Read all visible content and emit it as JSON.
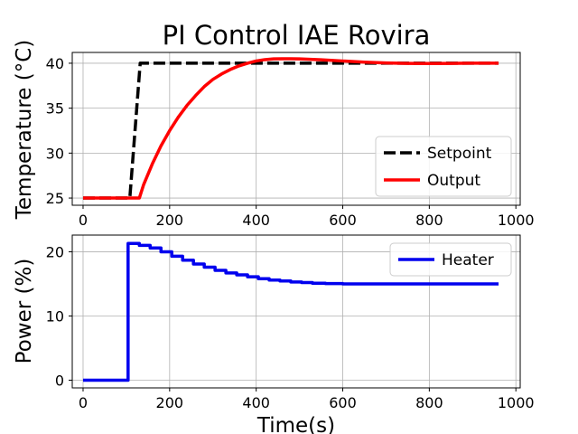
{
  "chart_data": [
    {
      "type": "line",
      "title": "PI Control IAE Rovira",
      "xlabel": "",
      "ylabel": "Temperature (°C)",
      "xlim": [
        -25,
        1010
      ],
      "ylim": [
        24.2,
        41.2
      ],
      "xticks": [
        0,
        200,
        400,
        600,
        800,
        1000
      ],
      "yticks": [
        25,
        30,
        35,
        40
      ],
      "grid": true,
      "legend_position": "lower-right",
      "series": [
        {
          "name": "Setpoint",
          "color": "#000000",
          "style": "dashed",
          "x": [
            0,
            108,
            132,
            960
          ],
          "y": [
            25,
            25,
            40,
            40
          ]
        },
        {
          "name": "Output",
          "color": "#ff0000",
          "style": "solid",
          "x": [
            0,
            130,
            140,
            160,
            180,
            200,
            220,
            240,
            260,
            280,
            300,
            320,
            340,
            360,
            380,
            400,
            420,
            440,
            460,
            480,
            500,
            550,
            600,
            650,
            700,
            750,
            800,
            850,
            900,
            960
          ],
          "y": [
            25,
            25,
            26.5,
            28.8,
            30.8,
            32.5,
            34.0,
            35.3,
            36.4,
            37.4,
            38.2,
            38.8,
            39.3,
            39.7,
            40.0,
            40.25,
            40.4,
            40.48,
            40.5,
            40.5,
            40.48,
            40.38,
            40.25,
            40.12,
            40.03,
            39.98,
            39.97,
            39.98,
            40.0,
            40.0
          ]
        }
      ]
    },
    {
      "type": "line",
      "title": "",
      "xlabel": "Time(s)",
      "ylabel": "Power (%)",
      "xlim": [
        -25,
        1010
      ],
      "ylim": [
        -1.2,
        22.6
      ],
      "xticks": [
        0,
        200,
        400,
        600,
        800,
        1000
      ],
      "yticks": [
        0,
        10,
        20
      ],
      "grid": true,
      "legend_position": "upper-right",
      "series": [
        {
          "name": "Heater",
          "color": "#0000ee",
          "style": "step",
          "x": [
            0,
            104,
            130,
            155,
            180,
            205,
            230,
            255,
            280,
            305,
            330,
            355,
            380,
            405,
            430,
            455,
            480,
            505,
            530,
            560,
            600,
            650,
            700,
            750,
            800,
            850,
            900,
            960
          ],
          "y": [
            0,
            21.3,
            21.0,
            20.6,
            20.0,
            19.3,
            18.7,
            18.1,
            17.6,
            17.1,
            16.7,
            16.4,
            16.1,
            15.8,
            15.6,
            15.45,
            15.3,
            15.2,
            15.1,
            15.05,
            15.0,
            15.0,
            15.0,
            15.0,
            15.0,
            15.0,
            15.0,
            15.0
          ]
        }
      ]
    }
  ]
}
